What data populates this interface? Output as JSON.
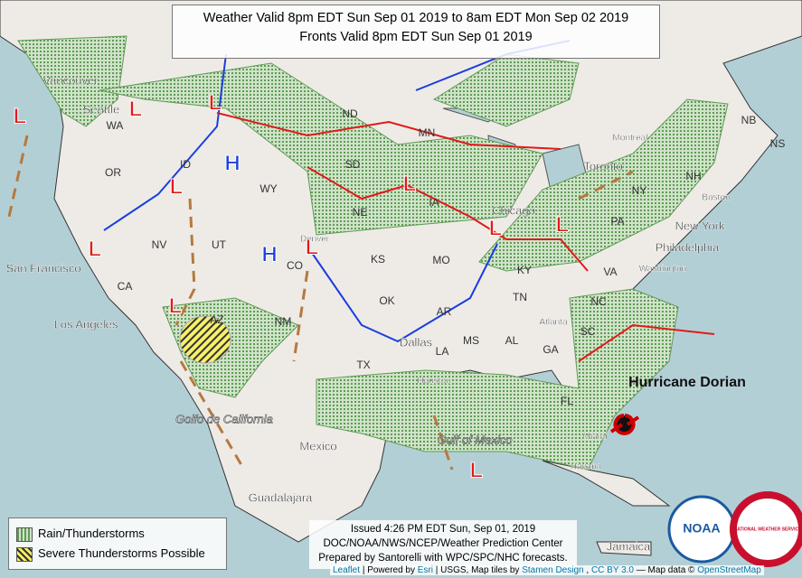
{
  "header": {
    "lines": [
      "Weather Valid 8pm EDT Sun Sep 01 2019 to 8am EDT Mon Sep 02 2019",
      "Fronts Valid 8pm EDT Sun Sep 01 2019"
    ]
  },
  "legend": {
    "items": [
      "Rain/Thunderstorms",
      "Severe Thunderstorms Possible"
    ]
  },
  "issued": {
    "lines": [
      "Issued 4:26 PM EDT Sun, Sep 01, 2019",
      "DOC/NOAA/NWS/NCEP/Weather Prediction Center",
      "Prepared by Santorelli with WPC/SPC/NHC forecasts."
    ]
  },
  "attribution": {
    "parts": [
      "Leaflet",
      "| Powered by",
      "Esri",
      "| USGS, Map tiles by",
      "Stamen Design",
      ",",
      "CC BY 3.0",
      "— Map data ©",
      "OpenStreetMap"
    ]
  },
  "logos": {
    "noaa": "NOAA",
    "nws": "NATIONAL WEATHER SERVICE"
  },
  "cities": [
    "Vancouver",
    "Seattle",
    "San Francisco",
    "Los Angeles",
    "Denver",
    "Dallas",
    "Houston",
    "Atlanta",
    "Chicago",
    "Toronto",
    "Montreal",
    "Boston",
    "New York",
    "Philadelphia",
    "Washington",
    "Miami",
    "Havana",
    "Mexico",
    "Guadalajara",
    "Jamaica"
  ],
  "waters": [
    "Golfo de California",
    "Gulf of Mexico"
  ],
  "storm": "Hurricane Dorian",
  "states": [
    "WA",
    "OR",
    "ID",
    "NV",
    "CA",
    "UT",
    "AZ",
    "WY",
    "CO",
    "NM",
    "ND",
    "SD",
    "NE",
    "KS",
    "OK",
    "TX",
    "MN",
    "IA",
    "MO",
    "AR",
    "LA",
    "MS",
    "AL",
    "TN",
    "KY",
    "GA",
    "FL",
    "SC",
    "NC",
    "VA",
    "PA",
    "NY",
    "NH",
    "NB",
    "NS"
  ],
  "lows": [
    "L",
    "L",
    "L",
    "L",
    "L",
    "L",
    "L",
    "L",
    "L",
    "L",
    "L"
  ],
  "highs": [
    "H",
    "H"
  ]
}
